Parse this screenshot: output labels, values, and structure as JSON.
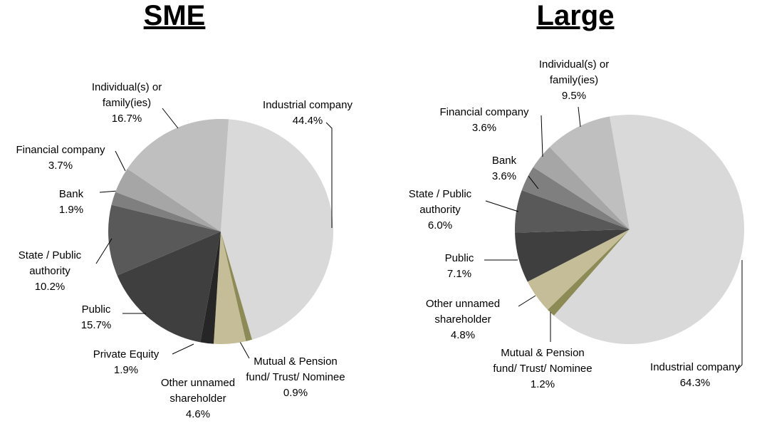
{
  "chart_data": [
    {
      "type": "pie",
      "title": "SME",
      "categories": [
        "Industrial company",
        "Mutual & Pension fund/ Trust/ Nominee",
        "Other unnamed shareholder",
        "Private Equity",
        "Public",
        "State / Public authority",
        "Bank",
        "Financial company",
        "Individual(s) or family(ies)"
      ],
      "values": [
        44.4,
        0.9,
        4.6,
        1.9,
        15.7,
        10.2,
        1.9,
        3.7,
        16.7
      ],
      "value_labels": [
        "44.4%",
        "0.9%",
        "4.6%",
        "1.9%",
        "15.7%",
        "10.2%",
        "1.9%",
        "3.7%",
        "16.7%"
      ],
      "colors": [
        "#d9d9d9",
        "#8c8a55",
        "#c4bd97",
        "#262626",
        "#3f3f3f",
        "#595959",
        "#7f7f7f",
        "#a6a6a6",
        "#bfbfbf"
      ]
    },
    {
      "type": "pie",
      "title": "Large",
      "categories": [
        "Industrial company",
        "Mutual & Pension fund/ Trust/ Nominee",
        "Other unnamed shareholder",
        "Public",
        "State / Public authority",
        "Bank",
        "Financial company",
        "Individual(s) or family(ies)"
      ],
      "values": [
        64.3,
        1.2,
        4.8,
        7.1,
        6.0,
        3.6,
        3.6,
        9.5
      ],
      "value_labels": [
        "64.3%",
        "1.2%",
        "4.8%",
        "7.1%",
        "6.0%",
        "3.6%",
        "3.6%",
        "9.5%"
      ],
      "colors": [
        "#d9d9d9",
        "#8c8a55",
        "#c4bd97",
        "#3f3f3f",
        "#595959",
        "#7f7f7f",
        "#a6a6a6",
        "#bfbfbf"
      ]
    }
  ]
}
